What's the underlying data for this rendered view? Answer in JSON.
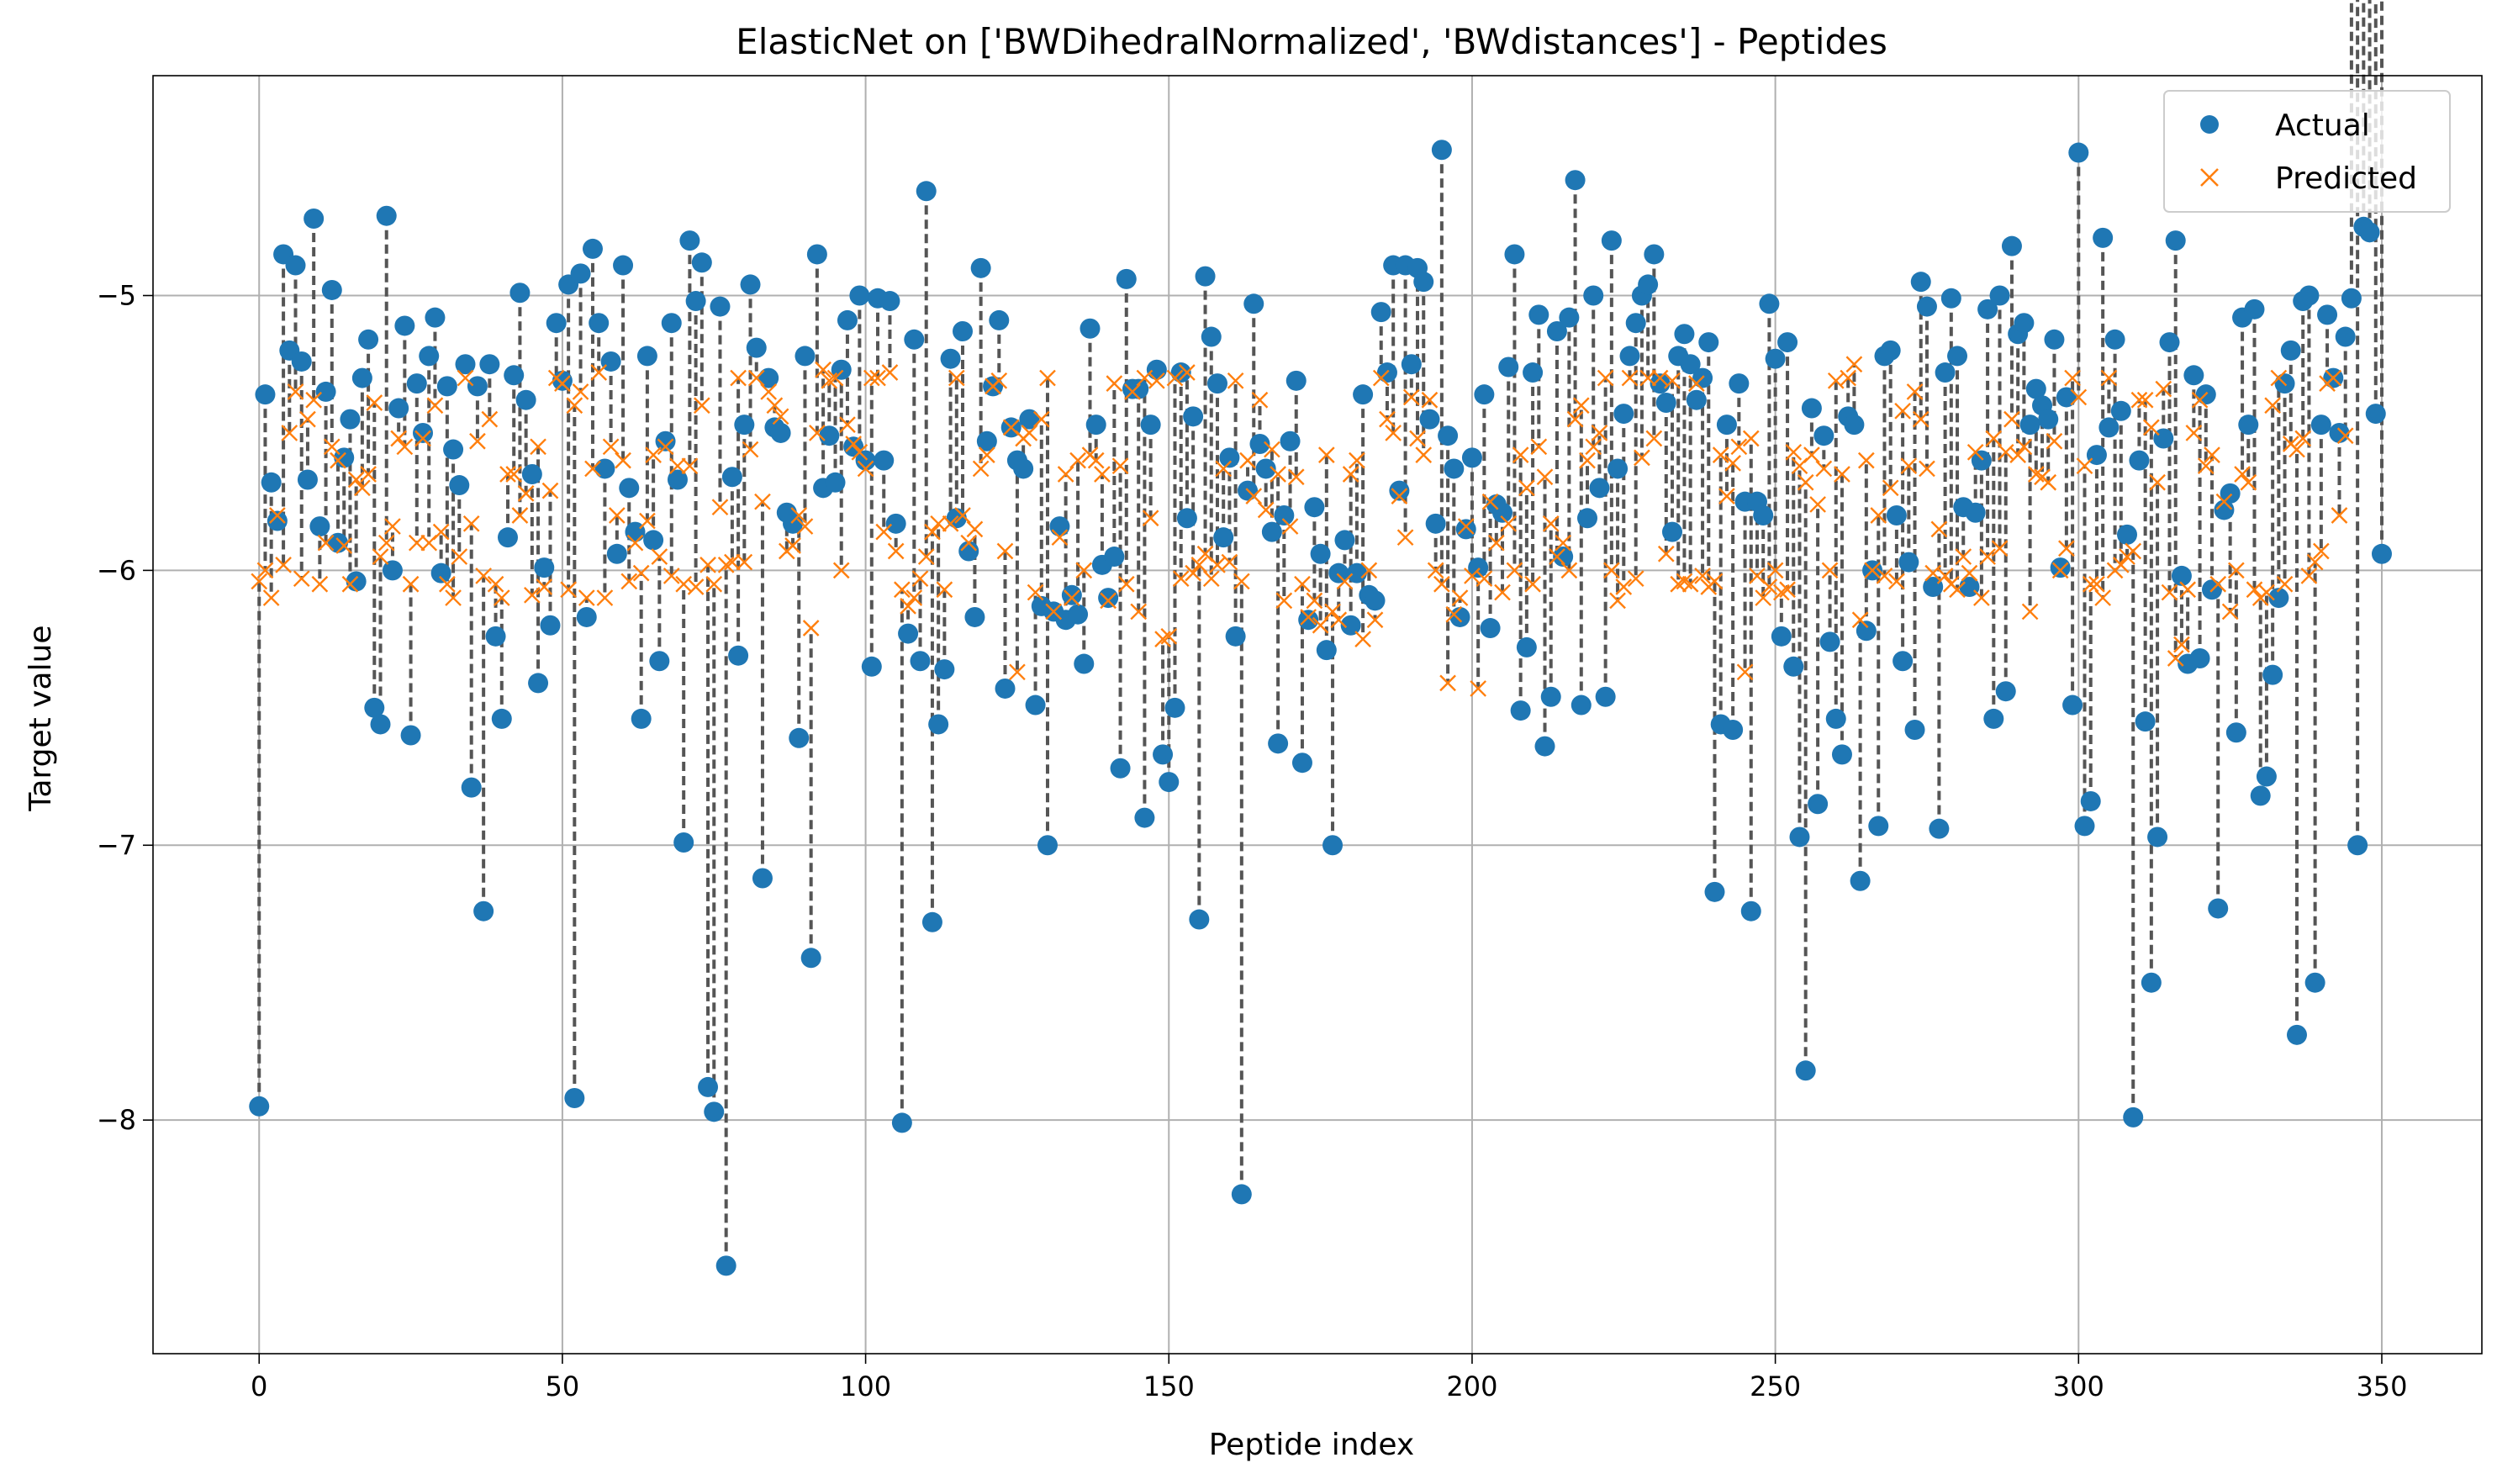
{
  "chart_data": {
    "type": "scatter",
    "title": "ElasticNet on ['BWDihedralNormalized', 'BWdistances'] - Peptides",
    "xlabel": "Peptide index",
    "ylabel": "Target value",
    "xlim": [
      -17.5,
      366.5
    ],
    "ylim": [
      -8.85,
      -4.2
    ],
    "xticks": [
      0,
      50,
      100,
      150,
      200,
      250,
      300,
      350
    ],
    "xtick_labels": [
      "0",
      "50",
      "100",
      "150",
      "200",
      "250",
      "300",
      "350"
    ],
    "yticks": [
      -8,
      -7,
      -6,
      -5
    ],
    "ytick_labels": [
      "−8",
      "−7",
      "−6",
      "−5"
    ],
    "grid": true,
    "legend_position": "top-right",
    "connector_style": "dashed",
    "colors": {
      "actual": "#1f77b4",
      "predicted": "#ff7f0e",
      "connector": "#555555",
      "grid": "#b0b0b0"
    },
    "series": [
      {
        "name": "Actual",
        "marker": "circle",
        "values": [
          -7.95,
          -5.36,
          -5.68,
          -5.82,
          -4.85,
          -5.2,
          -4.89,
          -5.24,
          -5.67,
          -4.72,
          -5.84,
          -5.35,
          -4.98,
          -5.9,
          -5.59,
          -5.45,
          -6.04,
          -5.3,
          -5.16,
          -6.5,
          -6.56,
          -4.71,
          -6.0,
          -5.41,
          -5.11,
          -6.6,
          -5.32,
          -5.5,
          -5.22,
          -5.08,
          -6.01,
          -5.33,
          -5.56,
          -5.69,
          -5.25,
          -6.79,
          -5.33,
          -7.24,
          -5.25,
          -6.24,
          -6.54,
          -5.88,
          -5.29,
          -4.99,
          -5.38,
          -5.65,
          -6.41,
          -5.99,
          -6.2,
          -5.1,
          -5.31,
          -4.96,
          -7.92,
          -4.92,
          -6.17,
          -4.83,
          -5.1,
          -5.63,
          -5.24,
          -5.94,
          -4.89,
          -5.7,
          -5.86,
          -6.54,
          -5.22,
          -5.89,
          -6.33,
          -5.53,
          -5.1,
          -5.67,
          -6.99,
          -4.8,
          -5.02,
          -4.88,
          -7.88,
          -7.97,
          -5.04,
          -8.53,
          -5.66,
          -6.31,
          -5.47,
          -4.96,
          -5.19,
          -7.12,
          -5.3,
          -5.48,
          -5.5,
          -5.79,
          -5.83,
          -6.61,
          -5.22,
          -7.41,
          -4.85,
          -5.7,
          -5.51,
          -5.68,
          -5.27,
          -5.09,
          -5.55,
          -5.0,
          -5.6,
          -6.35,
          -5.01,
          -5.6,
          -5.02,
          -5.83,
          -8.01,
          -6.23,
          -5.16,
          -6.33,
          -4.62,
          -7.28,
          -6.56,
          -6.36,
          -5.23,
          -5.81,
          -5.13,
          -5.93,
          -6.17,
          -4.9,
          -5.53,
          -5.33,
          -5.09,
          -6.43,
          -5.48,
          -5.6,
          -5.63,
          -5.45,
          -6.49,
          -6.13,
          -7.0,
          -6.15,
          -5.84,
          -6.18,
          -6.09,
          -6.16,
          -6.34,
          -5.12,
          -5.47,
          -5.98,
          -6.1,
          -5.95,
          -6.72,
          -4.94,
          -5.34,
          -5.34,
          -6.9,
          -5.47,
          -5.27,
          -6.67,
          -6.77,
          -6.5,
          -5.28,
          -5.81,
          -5.44,
          -7.27,
          -4.93,
          -5.15,
          -5.32,
          -5.88,
          -5.59,
          -6.24,
          -8.27,
          -5.71,
          -5.03,
          -5.54,
          -5.63,
          -5.86,
          -6.63,
          -5.8,
          -5.53,
          -5.31,
          -6.7,
          -6.18,
          -5.77,
          -5.94,
          -6.29,
          -7.0,
          -6.01,
          -5.89,
          -6.2,
          -6.01,
          -5.36,
          -6.09,
          -6.11,
          -5.06,
          -5.28,
          -4.89,
          -5.71,
          -4.89,
          -5.25,
          -4.9,
          -4.95,
          -5.45,
          -5.83,
          -4.47,
          -5.51,
          -5.63,
          -6.17,
          -5.85,
          -5.59,
          -5.99,
          -5.36,
          -6.21,
          -5.76,
          -5.79,
          -5.26,
          -4.85,
          -6.51,
          -6.28,
          -5.28,
          -5.07,
          -6.64,
          -6.46,
          -5.13,
          -5.95,
          -5.08,
          -4.58,
          -6.49,
          -5.81,
          -5.0,
          -5.7,
          -6.46,
          -4.8,
          -5.63,
          -5.43,
          -5.22,
          -5.1,
          -5.0,
          -4.96,
          -4.85,
          -5.32,
          -5.39,
          -5.86,
          -5.22,
          -5.14,
          -5.25,
          -5.38,
          -5.3,
          -5.17,
          -7.17,
          -6.56,
          -5.47,
          -6.58,
          -5.32,
          -5.75,
          -7.24,
          -5.75,
          -5.8,
          -5.03,
          -5.23,
          -6.24,
          -5.17,
          -6.35,
          -6.97,
          -7.82,
          -5.41,
          -6.85,
          -5.51,
          -6.26,
          -6.54,
          -6.67,
          -5.44,
          -5.47,
          -7.13,
          -6.22,
          -6.0,
          -6.93,
          -5.22,
          -5.2,
          -5.8,
          -6.33,
          -5.97,
          -6.58,
          -4.95,
          -5.04,
          -6.06,
          -6.94,
          -5.28,
          -5.01,
          -5.22,
          -5.77,
          -6.06,
          -5.79,
          -5.6,
          -5.05,
          -6.54,
          -5.0,
          -6.44,
          -4.82,
          -5.14,
          -5.1,
          -5.47,
          -5.34,
          -5.4,
          -5.45,
          -5.16,
          -5.99,
          -5.37,
          -6.49,
          -4.48,
          -6.93,
          -6.84,
          -5.58,
          -4.79,
          -5.48,
          -5.16,
          -5.42,
          -5.87,
          -7.99,
          -5.6,
          -6.55,
          -7.5,
          -6.97,
          -5.52,
          -5.17,
          -4.8,
          -6.02,
          -6.34,
          -5.29,
          -6.32,
          -5.36,
          -6.07,
          -7.23,
          -5.78,
          -5.72,
          -6.59,
          -5.08,
          -5.47,
          -5.05,
          -6.82,
          -6.75,
          -6.38,
          -6.1,
          -5.32,
          -5.2,
          -7.69,
          -5.02,
          -5.0,
          -7.5,
          -5.47,
          -5.07,
          -5.3,
          -5.5,
          -5.15,
          -5.01,
          -7.0,
          -4.75,
          -4.77,
          -5.43,
          -5.94
        ]
      },
      {
        "name": "Predicted",
        "marker": "x",
        "values": [
          -6.04,
          -6.0,
          -6.1,
          -5.8,
          -5.98,
          -5.5,
          -5.35,
          -6.03,
          -5.45,
          -5.38,
          -6.05,
          -5.9,
          -5.55,
          -5.6,
          -5.91,
          -6.05,
          -5.67,
          -5.7,
          -5.65,
          -5.39,
          -5.95,
          -5.9,
          -5.84,
          -5.52,
          -5.55,
          -6.05,
          -5.9,
          -5.52,
          -5.9,
          -5.4,
          -5.86,
          -6.05,
          -6.1,
          -5.95,
          -5.3,
          -5.83,
          -5.53,
          -6.02,
          -5.45,
          -6.05,
          -6.1,
          -5.65,
          -5.65,
          -5.8,
          -5.72,
          -6.09,
          -5.55,
          -6.06,
          -5.71,
          -5.3,
          -5.32,
          -6.07,
          -5.4,
          -5.35,
          -6.1,
          -5.63,
          -5.28,
          -6.1,
          -5.55,
          -5.8,
          -5.6,
          -6.04,
          -5.9,
          -6.01,
          -5.82,
          -5.58,
          -5.95,
          -5.55,
          -6.02,
          -5.62,
          -6.05,
          -5.62,
          -6.06,
          -5.4,
          -5.98,
          -6.05,
          -5.77,
          -5.98,
          -5.97,
          -5.3,
          -5.97,
          -5.56,
          -5.3,
          -5.75,
          -5.35,
          -5.4,
          -5.44,
          -5.93,
          -5.91,
          -5.8,
          -5.84,
          -6.21,
          -5.5,
          -5.27,
          -5.31,
          -5.3,
          -6.0,
          -5.47,
          -5.54,
          -5.57,
          -5.63,
          -5.3,
          -5.3,
          -5.86,
          -5.28,
          -5.93,
          -6.07,
          -6.13,
          -6.1,
          -6.03,
          -5.95,
          -5.86,
          -5.83,
          -6.07,
          -5.83,
          -5.3,
          -5.8,
          -5.9,
          -5.85,
          -5.63,
          -5.58,
          -5.33,
          -5.31,
          -5.93,
          -5.48,
          -6.37,
          -5.52,
          -5.5,
          -6.08,
          -5.45,
          -5.3,
          -6.15,
          -5.88,
          -5.65,
          -6.1,
          -5.6,
          -6.0,
          -5.58,
          -5.6,
          -5.65,
          -6.11,
          -5.32,
          -5.62,
          -6.05,
          -5.35,
          -6.15,
          -5.3,
          -5.81,
          -5.31,
          -6.25,
          -6.24,
          -5.3,
          -6.03,
          -5.28,
          -6.01,
          -5.98,
          -5.94,
          -6.03,
          -5.98,
          -5.63,
          -5.97,
          -5.31,
          -6.04,
          -5.6,
          -5.73,
          -5.38,
          -5.78,
          -5.56,
          -5.65,
          -6.11,
          -5.84,
          -5.66,
          -6.05,
          -6.17,
          -6.11,
          -6.2,
          -5.58,
          -6.15,
          -6.18,
          -6.04,
          -5.65,
          -5.6,
          -6.25,
          -6.0,
          -6.18,
          -5.3,
          -5.45,
          -5.5,
          -5.73,
          -5.88,
          -5.37,
          -5.52,
          -5.58,
          -5.38,
          -6.0,
          -6.05,
          -6.41,
          -6.16,
          -6.1,
          -5.84,
          -6.02,
          -6.43,
          -6.03,
          -5.75,
          -5.9,
          -6.08,
          -5.83,
          -6.0,
          -5.58,
          -5.7,
          -6.05,
          -5.55,
          -5.66,
          -5.83,
          -5.95,
          -5.9,
          -6.0,
          -5.45,
          -5.4,
          -5.6,
          -5.55,
          -5.5,
          -5.3,
          -6.0,
          -6.11,
          -6.06,
          -5.3,
          -6.03,
          -5.59,
          -5.3,
          -5.52,
          -5.3,
          -5.94,
          -5.31,
          -6.05,
          -6.04,
          -6.05,
          -5.32,
          -6.02,
          -6.06,
          -6.04,
          -5.58,
          -5.73,
          -5.61,
          -5.55,
          -6.37,
          -5.52,
          -6.02,
          -6.1,
          -6.06,
          -6.0,
          -6.08,
          -6.07,
          -5.57,
          -5.62,
          -5.68,
          -5.58,
          -5.76,
          -5.63,
          -6.0,
          -5.31,
          -5.65,
          -5.3,
          -5.25,
          -6.18,
          -5.6,
          -6.0,
          -5.8,
          -6.02,
          -5.7,
          -6.04,
          -5.42,
          -5.62,
          -5.35,
          -5.45,
          -5.63,
          -6.01,
          -5.85,
          -6.02,
          -6.05,
          -6.07,
          -5.95,
          -6.01,
          -5.57,
          -6.1,
          -5.95,
          -5.52,
          -5.92,
          -5.57,
          -5.45,
          -5.58,
          -5.55,
          -6.15,
          -5.65,
          -5.66,
          -5.68,
          -5.53,
          -6.0,
          -5.92,
          -5.3,
          -5.37,
          -5.62,
          -6.05,
          -6.05,
          -6.1,
          -5.3,
          -6.0,
          -5.98,
          -5.95,
          -5.93,
          -5.38,
          -5.38,
          -5.48,
          -5.68,
          -5.34,
          -6.08,
          -6.32,
          -6.27,
          -6.07,
          -5.5,
          -5.38,
          -5.62,
          -5.58,
          -6.05,
          -5.75,
          -6.15,
          -6.0,
          -5.65,
          -5.68,
          -6.07,
          -6.1,
          -6.08,
          -5.4,
          -5.3,
          -6.05,
          -5.54,
          -5.56,
          -5.52,
          -6.02,
          -5.97,
          -5.93,
          -5.32,
          -5.3,
          -5.8,
          -5.51
        ]
      }
    ]
  }
}
